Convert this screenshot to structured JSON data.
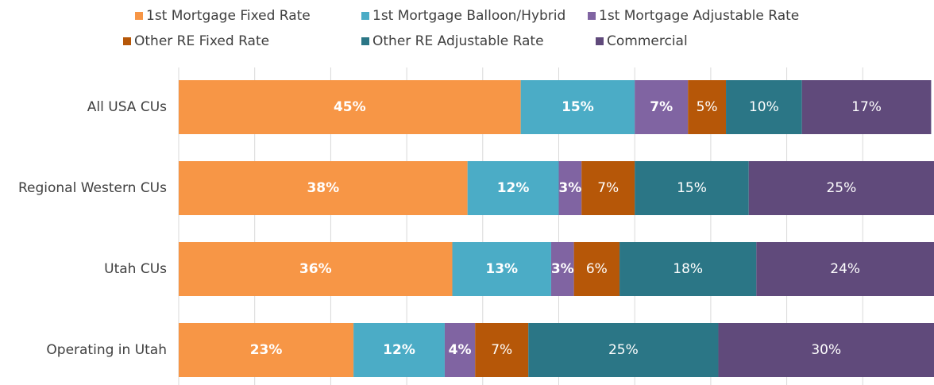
{
  "chart_data": {
    "type": "stacked_barh",
    "categories": [
      "All USA CUs",
      "Regional Western CUs",
      "Utah CUs",
      "Operating in Utah"
    ],
    "series": [
      {
        "name": "1st Mortgage Fixed Rate",
        "color": "#f79646",
        "values": [
          45,
          38,
          36,
          23
        ],
        "value_labels": [
          "45%",
          "38%",
          "36%",
          "23%"
        ]
      },
      {
        "name": "1st Mortgage Balloon/Hybrid",
        "color": "#4bacc6",
        "values": [
          15,
          12,
          13,
          12
        ],
        "value_labels": [
          "15%",
          "12%",
          "13%",
          "12%"
        ]
      },
      {
        "name": "1st Mortgage Adjustable Rate",
        "color": "#8064a2",
        "values": [
          7,
          3,
          3,
          4
        ],
        "value_labels": [
          "7%",
          "3%",
          "3%",
          "4%"
        ]
      },
      {
        "name": "Other RE Fixed Rate",
        "color": "#b65708",
        "values": [
          5,
          7,
          6,
          7
        ],
        "value_labels": [
          "5%",
          "7%",
          "6%",
          "7%"
        ]
      },
      {
        "name": "Other RE Adjustable Rate",
        "color": "#2b7686",
        "values": [
          10,
          15,
          18,
          25
        ],
        "value_labels": [
          "10%",
          "15%",
          "18%",
          "25%"
        ]
      },
      {
        "name": "Commercial",
        "color": "#604a7b",
        "values": [
          17,
          25,
          24,
          30
        ],
        "value_labels": [
          "17%",
          "25%",
          "24%",
          "30%"
        ]
      }
    ],
    "xlim": [
      0,
      100
    ],
    "xticks": [
      0,
      10,
      20,
      30,
      40,
      50,
      60,
      70,
      80,
      90,
      100
    ],
    "grid": true
  }
}
